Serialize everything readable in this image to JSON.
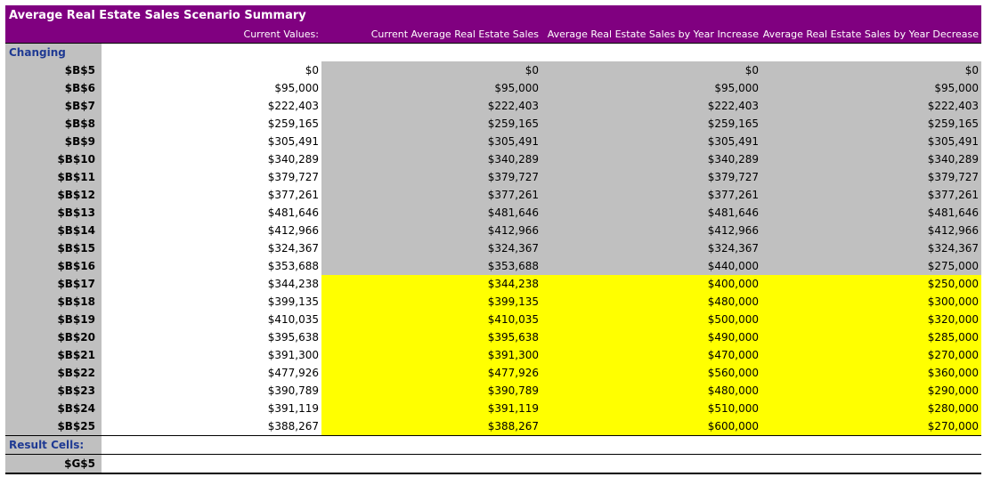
{
  "title": "Average Real Estate Sales Scenario Summary",
  "headers": [
    "",
    "Current Values:",
    "Current Average Real Estate Sales",
    "Average Real Estate Sales by Year Increase",
    "Average Real Estate Sales by Year Decrease"
  ],
  "changing_label": "Changing Cells:",
  "rows": [
    {
      "cell": "$B$5",
      "cur": "$0",
      "s1": "$0",
      "s2": "$0",
      "s3": "$0",
      "hl": false
    },
    {
      "cell": "$B$6",
      "cur": "$95,000",
      "s1": "$95,000",
      "s2": "$95,000",
      "s3": "$95,000",
      "hl": false
    },
    {
      "cell": "$B$7",
      "cur": "$222,403",
      "s1": "$222,403",
      "s2": "$222,403",
      "s3": "$222,403",
      "hl": false
    },
    {
      "cell": "$B$8",
      "cur": "$259,165",
      "s1": "$259,165",
      "s2": "$259,165",
      "s3": "$259,165",
      "hl": false
    },
    {
      "cell": "$B$9",
      "cur": "$305,491",
      "s1": "$305,491",
      "s2": "$305,491",
      "s3": "$305,491",
      "hl": false
    },
    {
      "cell": "$B$10",
      "cur": "$340,289",
      "s1": "$340,289",
      "s2": "$340,289",
      "s3": "$340,289",
      "hl": false
    },
    {
      "cell": "$B$11",
      "cur": "$379,727",
      "s1": "$379,727",
      "s2": "$379,727",
      "s3": "$379,727",
      "hl": false
    },
    {
      "cell": "$B$12",
      "cur": "$377,261",
      "s1": "$377,261",
      "s2": "$377,261",
      "s3": "$377,261",
      "hl": false
    },
    {
      "cell": "$B$13",
      "cur": "$481,646",
      "s1": "$481,646",
      "s2": "$481,646",
      "s3": "$481,646",
      "hl": false
    },
    {
      "cell": "$B$14",
      "cur": "$412,966",
      "s1": "$412,966",
      "s2": "$412,966",
      "s3": "$412,966",
      "hl": false
    },
    {
      "cell": "$B$15",
      "cur": "$324,367",
      "s1": "$324,367",
      "s2": "$324,367",
      "s3": "$324,367",
      "hl": false
    },
    {
      "cell": "$B$16",
      "cur": "$353,688",
      "s1": "$353,688",
      "s2": "$440,000",
      "s3": "$275,000",
      "hl": false
    },
    {
      "cell": "$B$17",
      "cur": "$344,238",
      "s1": "$344,238",
      "s2": "$400,000",
      "s3": "$250,000",
      "hl": true
    },
    {
      "cell": "$B$18",
      "cur": "$399,135",
      "s1": "$399,135",
      "s2": "$480,000",
      "s3": "$300,000",
      "hl": true
    },
    {
      "cell": "$B$19",
      "cur": "$410,035",
      "s1": "$410,035",
      "s2": "$500,000",
      "s3": "$320,000",
      "hl": true
    },
    {
      "cell": "$B$20",
      "cur": "$395,638",
      "s1": "$395,638",
      "s2": "$490,000",
      "s3": "$285,000",
      "hl": true
    },
    {
      "cell": "$B$21",
      "cur": "$391,300",
      "s1": "$391,300",
      "s2": "$470,000",
      "s3": "$270,000",
      "hl": true
    },
    {
      "cell": "$B$22",
      "cur": "$477,926",
      "s1": "$477,926",
      "s2": "$560,000",
      "s3": "$360,000",
      "hl": true
    },
    {
      "cell": "$B$23",
      "cur": "$390,789",
      "s1": "$390,789",
      "s2": "$480,000",
      "s3": "$290,000",
      "hl": true
    },
    {
      "cell": "$B$24",
      "cur": "$391,119",
      "s1": "$391,119",
      "s2": "$510,000",
      "s3": "$280,000",
      "hl": true
    },
    {
      "cell": "$B$25",
      "cur": "$388,267",
      "s1": "$388,267",
      "s2": "$600,000",
      "s3": "$270,000",
      "hl": true
    }
  ],
  "result_label": "Result Cells:",
  "result_rows": [
    {
      "cell": "$G$5"
    }
  ],
  "colors": {
    "title_bg": "#800080",
    "label_bg": "#c0c0c0",
    "highlight": "#ffff00",
    "section_text": "#1f3a93"
  }
}
